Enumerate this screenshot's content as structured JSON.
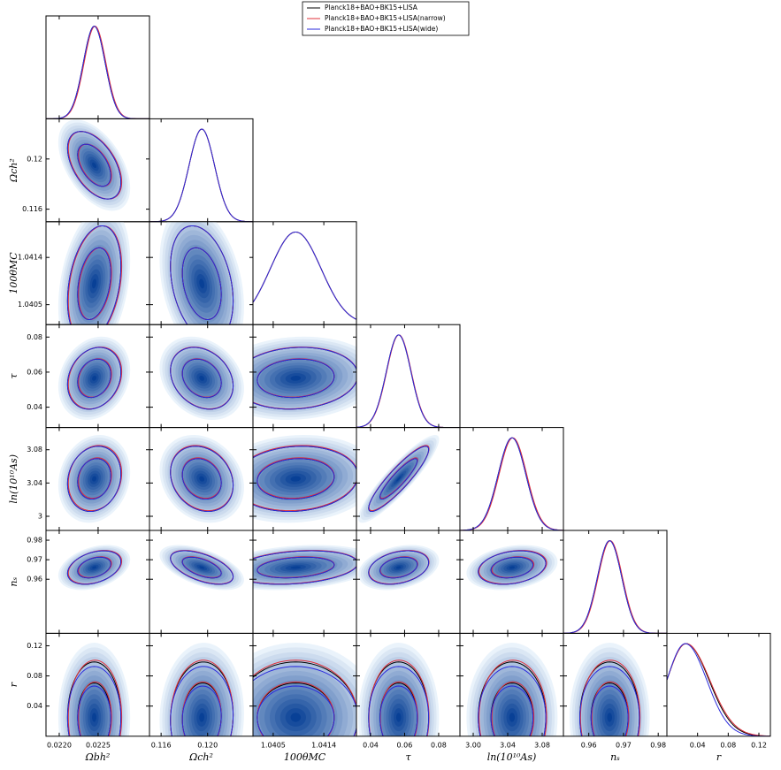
{
  "chart_data": {
    "type": "triangle",
    "parameters": [
      {
        "label": "Ωbh²",
        "xlim": [
          0.02183,
          0.02316
        ],
        "xticks": [
          {
            "value": 0.022,
            "label": "0.0220"
          },
          {
            "value": 0.0225,
            "label": "0.0225"
          }
        ]
      },
      {
        "label": "Ωch²",
        "xlim": [
          0.115,
          0.1239
        ],
        "xticks": [
          0.116,
          {
            "value": 0.12,
            "label": "0.120"
          }
        ],
        "ylim": [
          0.115,
          0.1232
        ],
        "yticks": [
          0.116,
          0.12
        ]
      },
      {
        "label": "100θMC",
        "xlim": [
          1.04014,
          1.04198
        ],
        "xticks": [
          1.0405,
          1.0414
        ],
        "ylim": [
          1.04012,
          1.04208
        ],
        "yticks": [
          1.0405,
          1.0414
        ]
      },
      {
        "label": "τ",
        "xlim": [
          0.0317,
          0.0925
        ],
        "xticks": [
          0.04,
          0.06,
          0.08
        ],
        "ylim": [
          0.0284,
          0.0871
        ],
        "yticks": [
          0.04,
          0.06,
          0.08
        ]
      },
      {
        "label": "ln(10¹⁰As)",
        "xlim": [
          2.9846,
          3.1046
        ],
        "xticks": [
          {
            "value": 3,
            "label": "3.00"
          },
          3.04,
          3.08
        ],
        "ylim": [
          2.983,
          3.1067
        ],
        "yticks": [
          3,
          3.04,
          3.08
        ]
      },
      {
        "label": "nₛ",
        "xlim": [
          0.9527,
          0.9825
        ],
        "xticks": [
          0.96,
          0.97,
          0.98
        ],
        "ylim": [
          0.9323,
          0.985
        ],
        "yticks": [
          0.96,
          0.97,
          0.98
        ]
      },
      {
        "label": "r",
        "xlim": [
          0,
          0.135
        ],
        "xticks": [
          0.04,
          0.08,
          0.12
        ],
        "ylim": [
          0,
          0.1365
        ],
        "yticks": [
          0.04,
          0.08,
          0.12
        ]
      }
    ],
    "series": [
      {
        "name": "Planck18+BAO+BK15+LISA",
        "color": "#000000",
        "mean": [
          0.02245,
          0.1195,
          1.0409,
          0.0565,
          3.045,
          0.966,
          0.025
        ],
        "sigma": [
          0.00014,
          0.0011,
          0.00045,
          0.0072,
          0.016,
          0.0035,
          0.03
        ],
        "sigma_left": [
          null,
          null,
          null,
          null,
          null,
          null,
          0.025
        ]
      },
      {
        "name": "Planck18+BAO+BK15+LISA(narrow)",
        "color": "#e0303a",
        "mean": [
          0.02246,
          0.1195,
          1.0409,
          0.0567,
          3.046,
          0.9662,
          0.025
        ],
        "sigma": [
          0.00014,
          0.0011,
          0.00045,
          0.0072,
          0.016,
          0.0035,
          0.031
        ],
        "sigma_left": [
          null,
          null,
          null,
          null,
          null,
          null,
          0.025
        ]
      },
      {
        "name": "Planck18+BAO+BK15+LISA(wide)",
        "color": "#2a2adc",
        "mean": [
          0.02245,
          0.1195,
          1.0409,
          0.0565,
          3.045,
          0.966,
          0.024
        ],
        "sigma": [
          0.00014,
          0.0011,
          0.00045,
          0.0072,
          0.016,
          0.0035,
          0.028
        ],
        "sigma_left": [
          null,
          null,
          null,
          null,
          null,
          null,
          0.024
        ]
      }
    ],
    "correlations": [
      [
        -0.5
      ],
      [
        0.3,
        -0.3
      ],
      [
        0.2,
        -0.25,
        0.1
      ],
      [
        0.15,
        -0.2,
        0.1,
        0.9
      ],
      [
        0.35,
        -0.55,
        0.25,
        0.3,
        0.25
      ],
      [
        0,
        0.05,
        0,
        0,
        0,
        0
      ]
    ]
  }
}
